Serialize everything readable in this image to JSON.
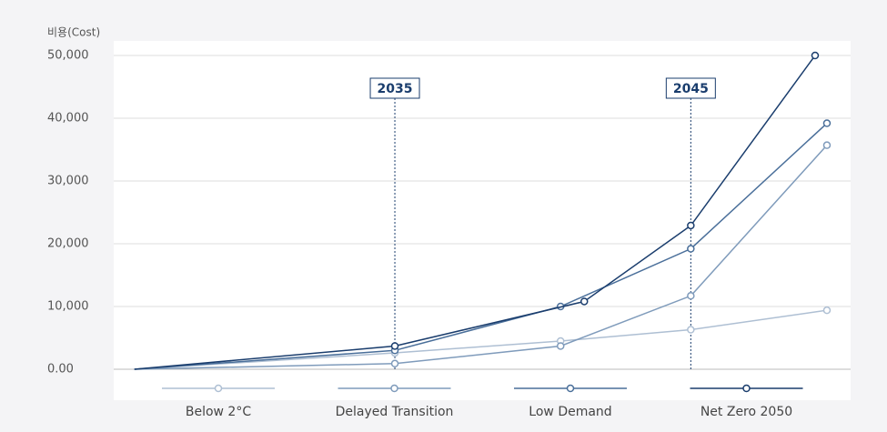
{
  "chart_data": {
    "type": "line",
    "y_label": "비용(Cost)",
    "xlim": [
      2025.5,
      2050.4
    ],
    "ylim": [
      0,
      50000
    ],
    "yticks": [
      {
        "value": 0,
        "label": "0.00"
      },
      {
        "value": 10000,
        "label": "10,000"
      },
      {
        "value": 20000,
        "label": "20,000"
      },
      {
        "value": 30000,
        "label": "30,000"
      },
      {
        "value": 40000,
        "label": "40,000"
      },
      {
        "value": 50000,
        "label": "50,000"
      }
    ],
    "grid": true,
    "legend": "bottom",
    "vlines": [
      2035,
      2045
    ],
    "series": [
      {
        "name": "Below 2°C",
        "color": "#aebfd3",
        "x": [
          2026.2,
          2035,
          2040.6,
          2045,
          2049.6
        ],
        "values": [
          0,
          2600,
          4500,
          6300,
          9400
        ]
      },
      {
        "name": "Delayed Transition",
        "color": "#7f9bbb",
        "x": [
          2026.2,
          2035,
          2040.6,
          2045,
          2049.6
        ],
        "values": [
          0,
          900,
          3700,
          11700,
          35700
        ]
      },
      {
        "name": "Low Demand",
        "color": "#4a6f9a",
        "x": [
          2026.2,
          2035,
          2040.6,
          2045,
          2049.6
        ],
        "values": [
          0,
          3000,
          10000,
          19200,
          39200
        ]
      },
      {
        "name": "Net Zero 2050",
        "color": "#1a3d6d",
        "x": [
          2026.2,
          2035,
          2041.4,
          2045,
          2049.2
        ],
        "values": [
          0,
          3700,
          10800,
          22900,
          50000
        ]
      }
    ]
  }
}
